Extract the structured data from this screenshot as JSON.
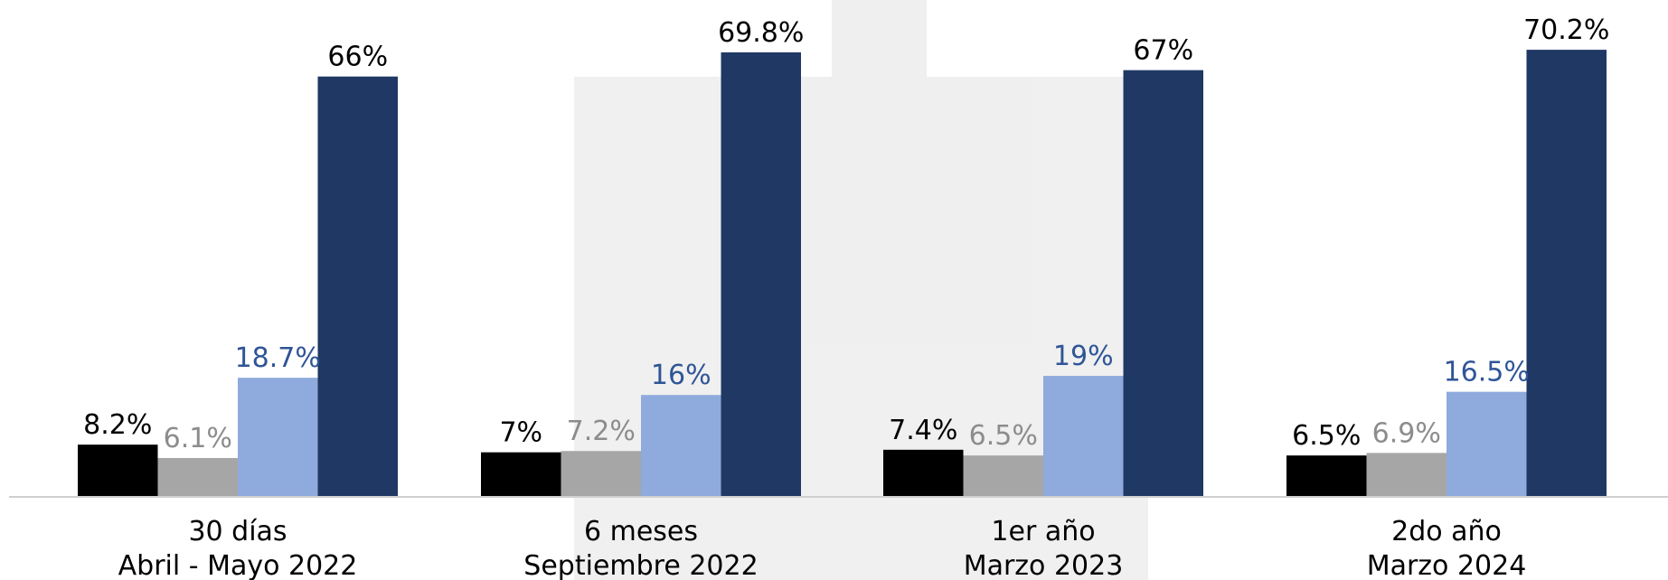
{
  "chart_data": {
    "type": "bar",
    "categories": [
      [
        "30 días",
        "Abril - Mayo 2022"
      ],
      [
        "6 meses",
        "Septiembre 2022"
      ],
      [
        "1er año",
        "Marzo 2023"
      ],
      [
        "2do año",
        "Marzo 2024"
      ]
    ],
    "series": [
      {
        "color": "#000000",
        "label_color": "#000000",
        "values": [
          8.2,
          7,
          7.4,
          6.5
        ],
        "labels": [
          "8.2%",
          "7%",
          "7.4%",
          "6.5%"
        ]
      },
      {
        "color": "#a6a6a6",
        "label_color": "#8c8c8c",
        "values": [
          6.1,
          7.2,
          6.5,
          6.9
        ],
        "labels": [
          "6.1%",
          "7.2%",
          "6.5%",
          "6.9%"
        ]
      },
      {
        "color": "#8faadc",
        "label_color": "#2f5597",
        "values": [
          18.7,
          16,
          19,
          16.5
        ],
        "labels": [
          "18.7%",
          "16%",
          "19%",
          "16.5%"
        ]
      },
      {
        "color": "#203864",
        "label_color": "#000000",
        "values": [
          66,
          69.8,
          67,
          70.2
        ],
        "labels": [
          "66%",
          "69.8%",
          "67%",
          "70.2%"
        ]
      }
    ],
    "ylim": [
      0,
      76
    ],
    "grid": false,
    "legend": "none"
  }
}
